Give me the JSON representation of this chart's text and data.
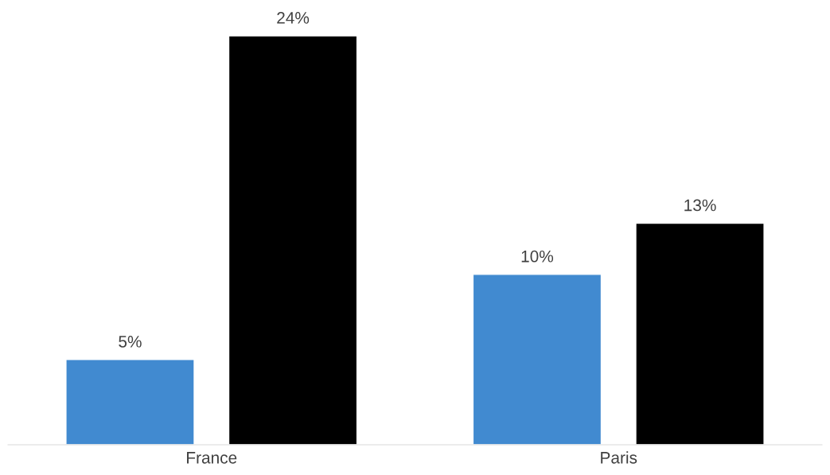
{
  "chart_data": {
    "type": "bar",
    "categories": [
      "France",
      "Paris"
    ],
    "series": [
      {
        "color": "#418ad0",
        "values": [
          5,
          10
        ],
        "value_labels": [
          "5%",
          "10%"
        ]
      },
      {
        "color": "#000000",
        "values": [
          24,
          13
        ],
        "value_labels": [
          "24%",
          "13%"
        ]
      }
    ],
    "legend": false
  }
}
